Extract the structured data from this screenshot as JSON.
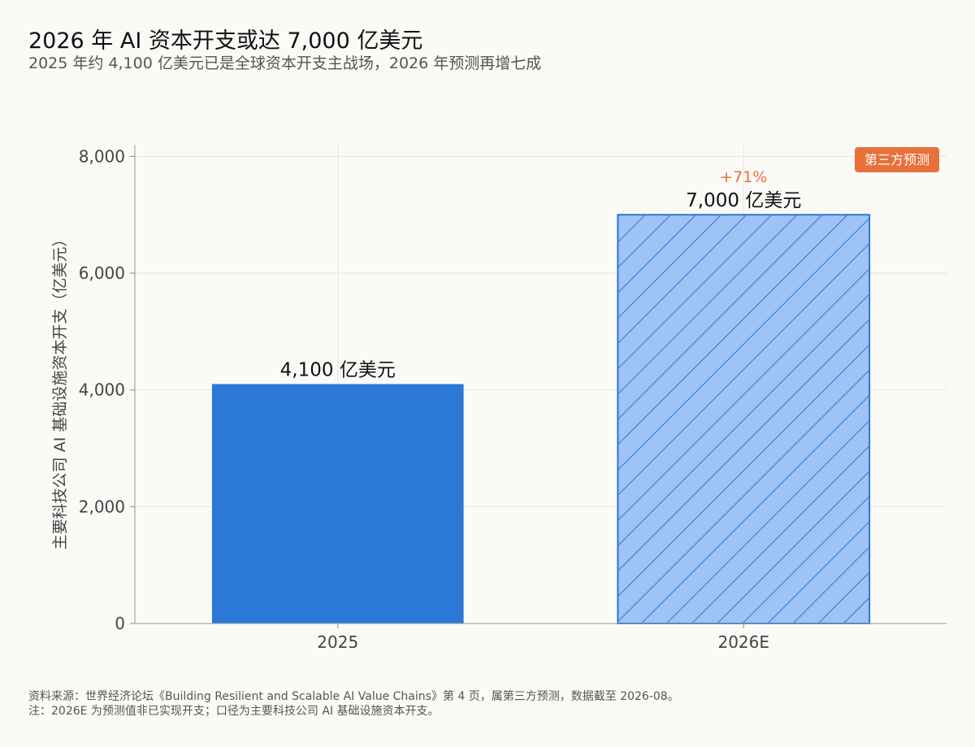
{
  "header": {
    "title": "2026 年 AI 资本开支或达 7,000 亿美元",
    "subtitle": "2025 年约 4,100 亿美元已是全球资本开支主战场，2026 年预测再增七成"
  },
  "footer": {
    "line1": "资料来源：世界经济论坛《Building Resilient and Scalable AI Value Chains》第 4 页，属第三方预测，数据截至 2026-08。",
    "line2": "注：2026E 为预测值非已实现开支；口径为主要科技公司 AI 基础设施资本开支。"
  },
  "chart_data": {
    "type": "bar",
    "categories": [
      "2025",
      "2026E"
    ],
    "values": [
      4100,
      7000
    ],
    "bar_labels": [
      "4,100 亿美元",
      "7,000 亿美元"
    ],
    "ylabel": "主要科技公司 AI 基础设施资本开支（亿美元）",
    "ylim": [
      0,
      8200
    ],
    "yticks": [
      0,
      2000,
      4000,
      6000,
      8000
    ],
    "ytick_labels": [
      "0",
      "2,000",
      "4,000",
      "6,000",
      "8,000"
    ],
    "grid": true,
    "growth_annotation": "+71%",
    "forecast_badge": "第三方预测",
    "colors": {
      "actual": "#2b78d6",
      "forecast_fill": "#9ec3f4",
      "forecast_stroke": "#2b78d6",
      "annotation": "#e8703a",
      "badge": "#e8703a"
    }
  }
}
